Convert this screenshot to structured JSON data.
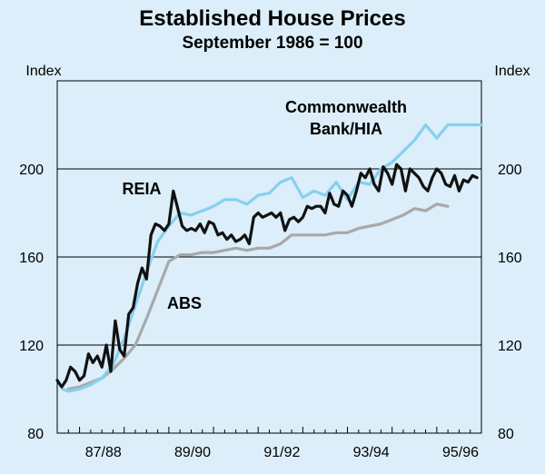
{
  "chart_data": {
    "type": "line",
    "title": "Established House Prices",
    "subtitle": "September 1986 = 100",
    "ylabel_left": "Index",
    "ylabel_right": "Index",
    "ylim": [
      80,
      240
    ],
    "yticks": [
      80,
      120,
      160,
      200
    ],
    "xlim": [
      1986.5,
      1996.0
    ],
    "xticks": [
      {
        "value": 1988.0,
        "label": "87/88"
      },
      {
        "value": 1990.0,
        "label": "89/90"
      },
      {
        "value": 1992.0,
        "label": "91/92"
      },
      {
        "value": 1994.0,
        "label": "93/94"
      },
      {
        "value": 1996.0,
        "label": "95/96"
      }
    ],
    "annotations": [
      {
        "text": "Commonwealth",
        "series": "Commonwealth Bank/HIA"
      },
      {
        "text": "Bank/HIA",
        "series": "Commonwealth Bank/HIA"
      },
      {
        "text": "REIA",
        "series": "REIA"
      },
      {
        "text": "ABS",
        "series": "ABS"
      }
    ],
    "series": [
      {
        "name": "Commonwealth Bank/HIA",
        "color": "#86d0f0",
        "x": [
          1986.62,
          1986.75,
          1987.0,
          1987.25,
          1987.5,
          1987.75,
          1988.0,
          1988.25,
          1988.5,
          1988.75,
          1989.0,
          1989.25,
          1989.5,
          1989.75,
          1990.0,
          1990.25,
          1990.5,
          1990.75,
          1991.0,
          1991.25,
          1991.5,
          1991.75,
          1992.0,
          1992.25,
          1992.5,
          1992.75,
          1993.0,
          1993.25,
          1993.5,
          1993.75,
          1994.0,
          1994.25,
          1994.5,
          1994.75,
          1995.0,
          1995.25,
          1995.5,
          1995.75,
          1996.0
        ],
        "y": [
          100,
          99,
          100,
          102,
          105,
          111,
          123,
          138,
          153,
          167,
          174,
          180,
          179,
          181,
          183,
          186,
          186,
          184,
          188,
          189,
          194,
          196,
          187,
          190,
          188,
          194,
          186,
          194,
          193,
          200,
          203,
          208,
          213,
          220,
          214,
          220,
          220,
          220,
          220
        ]
      },
      {
        "name": "REIA",
        "color": "#111111",
        "x": [
          1986.5,
          1986.6,
          1986.7,
          1986.8,
          1986.9,
          1987.0,
          1987.1,
          1987.2,
          1987.3,
          1987.4,
          1987.5,
          1987.6,
          1987.7,
          1987.8,
          1987.9,
          1988.0,
          1988.1,
          1988.2,
          1988.3,
          1988.4,
          1988.5,
          1988.6,
          1988.7,
          1988.8,
          1988.9,
          1989.0,
          1989.1,
          1989.2,
          1989.3,
          1989.4,
          1989.5,
          1989.6,
          1989.7,
          1989.8,
          1989.9,
          1990.0,
          1990.1,
          1990.2,
          1990.3,
          1990.4,
          1990.5,
          1990.6,
          1990.7,
          1990.8,
          1990.9,
          1991.0,
          1991.1,
          1991.2,
          1991.3,
          1991.4,
          1991.5,
          1991.6,
          1991.7,
          1991.8,
          1991.9,
          1992.0,
          1992.1,
          1992.2,
          1992.3,
          1992.4,
          1992.5,
          1992.6,
          1992.7,
          1992.8,
          1992.9,
          1993.0,
          1993.1,
          1993.2,
          1993.3,
          1993.4,
          1993.5,
          1993.6,
          1993.7,
          1993.8,
          1993.9,
          1994.0,
          1994.1,
          1994.2,
          1994.3,
          1994.4,
          1994.5,
          1994.6,
          1994.7,
          1994.8,
          1994.9,
          1995.0,
          1995.1,
          1995.2,
          1995.3,
          1995.4,
          1995.5,
          1995.6,
          1995.7,
          1995.8,
          1995.9
        ],
        "y": [
          104,
          101,
          104,
          110,
          108,
          104,
          106,
          116,
          112,
          115,
          110,
          120,
          108,
          131,
          118,
          115,
          134,
          137,
          148,
          155,
          150,
          170,
          175,
          174,
          172,
          175,
          190,
          182,
          174,
          172,
          173,
          172,
          175,
          171,
          176,
          175,
          170,
          171,
          168,
          170,
          167,
          168,
          170,
          166,
          178,
          180,
          178,
          179,
          180,
          178,
          180,
          172,
          177,
          178,
          176,
          178,
          183,
          182,
          183,
          183,
          180,
          189,
          184,
          183,
          190,
          188,
          183,
          190,
          198,
          196,
          200,
          193,
          190,
          201,
          198,
          193,
          202,
          200,
          190,
          200,
          198,
          196,
          192,
          190,
          196,
          200,
          198,
          193,
          192,
          197,
          190,
          195,
          194,
          197,
          196
        ]
      },
      {
        "name": "ABS",
        "color": "#a8a8a8",
        "x": [
          1986.75,
          1987.0,
          1987.25,
          1987.5,
          1987.75,
          1988.0,
          1988.25,
          1988.5,
          1988.75,
          1989.0,
          1989.25,
          1989.5,
          1989.75,
          1990.0,
          1990.25,
          1990.5,
          1990.75,
          1991.0,
          1991.25,
          1991.5,
          1991.75,
          1992.0,
          1992.25,
          1992.5,
          1992.75,
          1993.0,
          1993.25,
          1993.5,
          1993.75,
          1994.0,
          1994.25,
          1994.5,
          1994.75,
          1995.0,
          1995.25
        ],
        "y": [
          100,
          101,
          103,
          105,
          109,
          114,
          120,
          132,
          145,
          158,
          161,
          161,
          162,
          162,
          163,
          164,
          163,
          164,
          164,
          166,
          170,
          170,
          170,
          170,
          171,
          171,
          173,
          174,
          175,
          177,
          179,
          182,
          181,
          184,
          183
        ]
      }
    ]
  }
}
